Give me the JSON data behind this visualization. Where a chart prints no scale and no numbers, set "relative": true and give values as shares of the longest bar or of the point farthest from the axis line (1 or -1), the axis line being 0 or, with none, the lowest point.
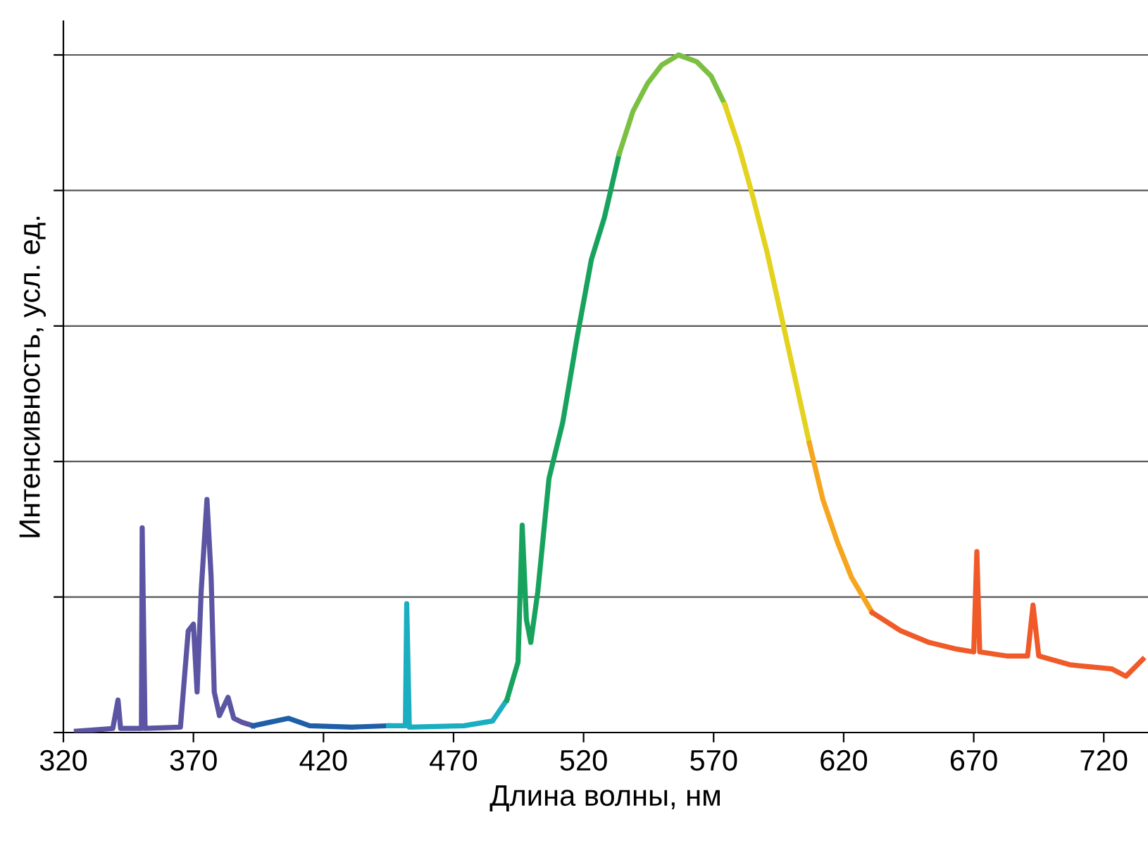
{
  "chart_data": {
    "type": "line",
    "relative": true,
    "xlabel": "Длина волны, нм",
    "ylabel": "Интенсивность, усл. ед.",
    "xlim": [
      320,
      737
    ],
    "xticks": [
      320,
      370,
      420,
      470,
      520,
      570,
      620,
      670,
      720
    ],
    "grid": "y",
    "legend": false,
    "marker": "none",
    "line_style": "solid",
    "series": [
      {
        "color": "#5b55a3",
        "x": [
          325,
          339,
          341,
          342,
          350,
          350.3,
          351.4,
          365,
          368,
          370,
          371.4,
          373,
          375.2,
          376.8,
          378,
          380,
          383.3,
          385.5,
          388.7,
          393
        ],
        "values": [
          0.002,
          0.006,
          0.048,
          0.006,
          0.006,
          0.302,
          0.006,
          0.008,
          0.15,
          0.16,
          0.06,
          0.21,
          0.344,
          0.23,
          0.06,
          0.025,
          0.052,
          0.021,
          0.015,
          0.01
        ]
      },
      {
        "color": "#1f5fa8",
        "x": [
          393,
          406.6,
          414.7,
          431,
          445
        ],
        "values": [
          0.01,
          0.021,
          0.01,
          0.008,
          0.01
        ]
      },
      {
        "color": "#1aaec0",
        "x": [
          445,
          451.5,
          452,
          453,
          474,
          485,
          490.5
        ],
        "values": [
          0.01,
          0.01,
          0.19,
          0.008,
          0.01,
          0.017,
          0.048
        ]
      },
      {
        "color": "#17a35e",
        "x": [
          490.5,
          494.8,
          496.4,
          498,
          499.7,
          502.4,
          506.7,
          512,
          517.5,
          523,
          528,
          533.7
        ],
        "values": [
          0.048,
          0.104,
          0.306,
          0.167,
          0.133,
          0.208,
          0.375,
          0.458,
          0.583,
          0.698,
          0.76,
          0.854
        ]
      },
      {
        "color": "#7cc043",
        "x": [
          533.7,
          539,
          544.6,
          550,
          556.5,
          563.5,
          569,
          574.3
        ],
        "values": [
          0.854,
          0.917,
          0.958,
          0.985,
          1.0,
          0.99,
          0.969,
          0.927
        ]
      },
      {
        "color": "#e3d21e",
        "x": [
          574.3,
          579.7,
          585,
          590.6,
          596,
          601.4,
          606.8
        ],
        "values": [
          0.927,
          0.865,
          0.792,
          0.708,
          0.615,
          0.521,
          0.427
        ]
      },
      {
        "color": "#f6a51e",
        "x": [
          606.8,
          612,
          617.6,
          623,
          631
        ],
        "values": [
          0.427,
          0.344,
          0.281,
          0.229,
          0.177
        ]
      },
      {
        "color": "#f05a28",
        "x": [
          631,
          642,
          652.8,
          663.6,
          670,
          671.2,
          672.3,
          682.6,
          690.7,
          692.8,
          695,
          707,
          723,
          728.5,
          735
        ],
        "values": [
          0.177,
          0.15,
          0.133,
          0.123,
          0.119,
          0.267,
          0.119,
          0.113,
          0.113,
          0.188,
          0.113,
          0.1,
          0.094,
          0.083,
          0.108
        ]
      }
    ]
  }
}
